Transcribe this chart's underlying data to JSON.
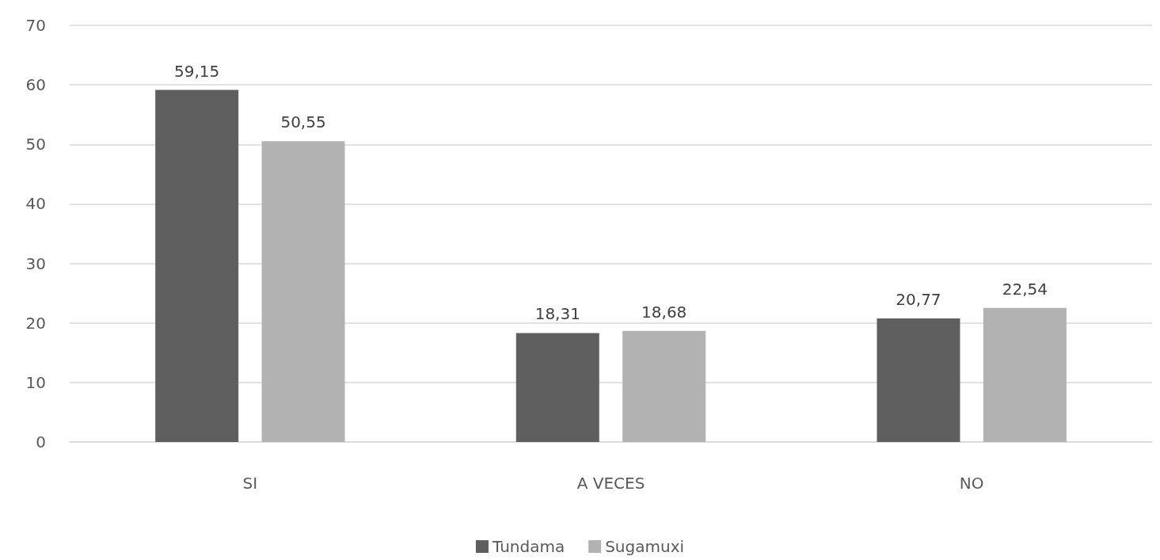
{
  "chart_data": {
    "type": "bar",
    "categories": [
      "SI",
      "A VECES",
      "NO"
    ],
    "series": [
      {
        "name": "Tundama",
        "color": "#5f5f5f",
        "values": [
          59.15,
          18.31,
          20.77
        ],
        "value_labels": [
          "59,15",
          "18,31",
          "20,77"
        ]
      },
      {
        "name": "Sugamuxi",
        "color": "#b2b2b2",
        "values": [
          50.55,
          18.68,
          22.54
        ],
        "value_labels": [
          "50,55",
          "18,68",
          "22,54"
        ]
      }
    ],
    "ylim": [
      0,
      70
    ],
    "yticks": [
      0,
      10,
      20,
      30,
      40,
      50,
      60,
      70
    ],
    "grid": "y",
    "legend": "bottom"
  }
}
